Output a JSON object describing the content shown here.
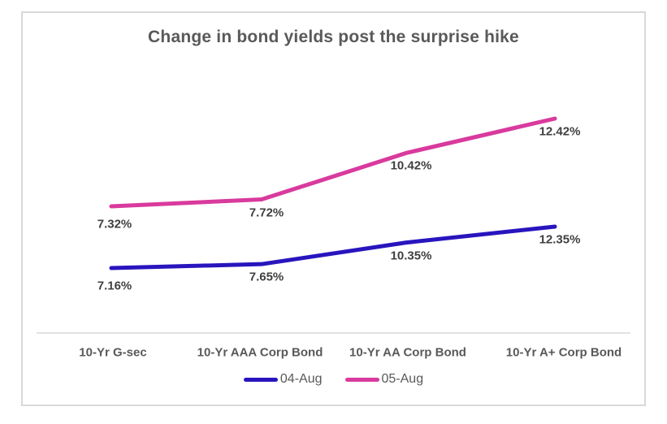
{
  "chart_data": {
    "type": "line",
    "title": "Change in bond yields post the surprise hike",
    "categories": [
      "10-Yr G-sec",
      "10-Yr AAA Corp Bond",
      "10-Yr AA Corp Bond",
      "10-Yr A+ Corp Bond"
    ],
    "series": [
      {
        "name": "04-Aug",
        "color": "#2815BE",
        "values": [
          7.16,
          7.65,
          10.35,
          12.35
        ],
        "point_labels": [
          "7.16%",
          "7.65%",
          "10.35%",
          "12.35%"
        ]
      },
      {
        "name": "05-Aug",
        "color": "#D93A9D",
        "values": [
          7.32,
          7.72,
          10.42,
          12.42
        ],
        "point_labels": [
          "7.32%",
          "7.72%",
          "10.42%",
          "12.42%"
        ]
      }
    ],
    "xlabel": "",
    "ylabel": "",
    "grid": false,
    "y_axis_visible": false,
    "legend_position": "bottom",
    "colors": {
      "title_text": "#595959",
      "data_label_text": "#404040",
      "axis_text": "#595959",
      "axis_line": "#D9D9D9",
      "frame_border": "#D9D9D9"
    }
  }
}
